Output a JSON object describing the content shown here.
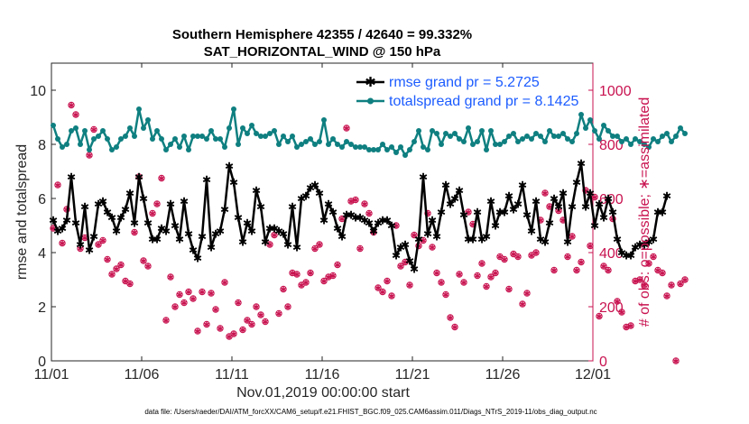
{
  "chart_data": {
    "type": "line",
    "title_line1": "Southern Hemisphere 42355 / 42640 = 99.332%",
    "title_line2": "SAT_HORIZONTAL_WIND @ 150 hPa",
    "xlabel": "Nov.01,2019 00:00:00 start",
    "ylabel_left": "rmse and totalspread",
    "ylabel_right": "# of obs: o=possible; ∗=assimilated",
    "footer": "data file: /Users/raeder/DAI/ATM_forcXX/CAM6_setup/f.e21.FHIST_BGC.f09_025.CAM6assim.011/Diags_NTrS_2019-11/obs_diag_output.nc",
    "x_ticks": [
      "11/01",
      "11/06",
      "11/11",
      "11/16",
      "11/21",
      "11/26",
      "12/01"
    ],
    "x_tick_days": [
      0,
      5,
      10,
      15,
      20,
      25,
      30
    ],
    "xlim": [
      0,
      30
    ],
    "ylim_left": [
      0,
      11
    ],
    "ylim_right": [
      0,
      1100
    ],
    "y_ticks_left": [
      "0",
      "2",
      "4",
      "6",
      "8",
      "10"
    ],
    "y_tick_values_left": [
      0,
      2,
      4,
      6,
      8,
      10
    ],
    "y_ticks_right": [
      "0",
      "200",
      "400",
      "600",
      "800",
      "1000"
    ],
    "y_tick_values_right": [
      0,
      200,
      400,
      600,
      800,
      1000
    ],
    "x_step_days": 0.25,
    "series": [
      {
        "name": "rmse grand pr = 5.2725",
        "color": "#000000",
        "values": [
          5.2,
          4.8,
          4.9,
          5.2,
          6.8,
          5.1,
          4.3,
          5.7,
          4.1,
          4.6,
          5.8,
          5.9,
          5.5,
          5.3,
          4.8,
          5.3,
          5.6,
          6.2,
          5.1,
          6.8,
          6.0,
          5.1,
          4.5,
          4.5,
          4.9,
          4.8,
          5.8,
          5.0,
          4.5,
          5.9,
          4.7,
          4.1,
          3.8,
          4.6,
          6.7,
          4.2,
          4.7,
          4.8,
          5.6,
          7.2,
          6.6,
          5.3,
          4.4,
          5.1,
          4.8,
          6.3,
          5.7,
          4.4,
          4.9,
          4.9,
          4.8,
          4.7,
          4.3,
          5.7,
          4.2,
          6.0,
          6.1,
          6.4,
          6.5,
          6.2,
          5.2,
          5.8,
          5.5,
          4.9,
          4.6,
          5.4,
          5.4,
          5.3,
          5.3,
          5.2,
          5.1,
          4.8,
          5.1,
          5.2,
          5.2,
          5.0,
          3.9,
          4.2,
          4.3,
          3.7,
          3.4,
          4.5,
          6.8,
          4.7,
          5.2,
          4.6,
          5.5,
          6.5,
          5.8,
          6.0,
          6.3,
          5.4,
          4.5,
          4.5,
          5.5,
          4.5,
          4.6,
          5.9,
          5.0,
          5.5,
          5.5,
          6.1,
          5.6,
          5.8,
          6.5,
          5.4,
          4.8,
          5.9,
          4.5,
          4.4,
          5.1,
          6.0,
          5.7,
          6.2,
          4.4,
          5.7,
          6.6,
          7.3,
          5.7,
          6.2,
          5.0,
          5.8,
          5.3,
          6.0,
          5.5,
          4.5,
          4.0,
          3.9,
          3.9,
          4.2,
          4.3,
          4.3,
          4.4,
          4.5,
          5.5,
          5.5,
          6.1
        ],
        "marker": "*"
      },
      {
        "name": "totalspread grand pr = 8.1425",
        "color": "#0f7f80",
        "values": [
          8.7,
          8.2,
          7.9,
          8.0,
          8.5,
          8.6,
          8.0,
          8.5,
          7.8,
          8.2,
          8.3,
          8.5,
          8.2,
          7.8,
          7.9,
          8.2,
          8.3,
          8.6,
          8.3,
          9.3,
          8.6,
          8.9,
          8.2,
          8.5,
          8.2,
          7.8,
          8.0,
          8.2,
          7.9,
          8.3,
          7.8,
          8.3,
          8.3,
          8.3,
          8.2,
          8.5,
          8.2,
          8.2,
          7.9,
          8.6,
          9.3,
          8.0,
          8.6,
          8.4,
          8.7,
          8.4,
          8.3,
          8.3,
          8.4,
          8.5,
          8.0,
          8.3,
          8.1,
          8.3,
          7.9,
          8.0,
          8.1,
          8.2,
          8.0,
          8.1,
          8.9,
          8.0,
          8.2,
          8.0,
          7.9,
          8.1,
          8.0,
          7.9,
          7.9,
          7.9,
          7.8,
          7.8,
          7.8,
          8.0,
          7.8,
          7.9,
          7.7,
          7.9,
          7.6,
          7.8,
          8.1,
          8.5,
          7.9,
          7.8,
          8.5,
          8.4,
          8.0,
          8.4,
          8.3,
          8.4,
          8.2,
          8.1,
          8.6,
          8.0,
          8.1,
          8.5,
          7.8,
          8.5,
          8.0,
          8.0,
          8.1,
          8.3,
          8.4,
          8.1,
          8.2,
          8.3,
          8.2,
          8.4,
          8.3,
          8.1,
          8.5,
          8.3,
          8.3,
          8.4,
          8.2,
          8.1,
          8.4,
          9.1,
          8.6,
          8.9,
          8.5,
          8.2,
          8.7,
          8.5,
          8.3,
          8.3,
          8.1,
          8.2,
          8.0,
          8.2,
          8.1,
          8.0,
          7.9,
          8.2,
          8.1,
          8.3,
          8.4,
          8.1,
          8.3,
          8.6,
          8.4
        ],
        "marker": "o"
      },
      {
        "name": "# of obs",
        "color": "#c8124f",
        "axis": "right",
        "values": [
          490,
          650,
          435,
          560,
          945,
          910,
          415,
          455,
          760,
          855,
          430,
          445,
          375,
          320,
          340,
          355,
          295,
          285,
          475,
          680,
          370,
          350,
          545,
          580,
          675,
          150,
          310,
          200,
          245,
          215,
          255,
          230,
          110,
          255,
          135,
          250,
          190,
          120,
          290,
          90,
          100,
          215,
          115,
          150,
          135,
          200,
          170,
          145,
          430,
          465,
          175,
          265,
          200,
          325,
          320,
          280,
          290,
          325,
          415,
          430,
          295,
          310,
          315,
          355,
          525,
          860,
          590,
          595,
          415,
          580,
          545,
          475,
          270,
          255,
          295,
          240,
          500,
          350,
          365,
          280,
          465,
          425,
          445,
          545,
          420,
          325,
          290,
          245,
          160,
          125,
          320,
          290,
          550,
          505,
          315,
          360,
          275,
          310,
          325,
          385,
          375,
          265,
          395,
          385,
          210,
          250,
          390,
          400,
          520,
          620,
          570,
          335,
          555,
          520,
          385,
          460,
          335,
          365,
          630,
          425,
          605,
          165,
          350,
          335,
          525,
          220,
          180,
          125,
          130,
          295,
          300,
          280,
          360,
          385,
          335,
          325,
          240,
          280,
          0,
          285,
          300
        ]
      }
    ],
    "legend_position": "top-right",
    "grid": false
  }
}
